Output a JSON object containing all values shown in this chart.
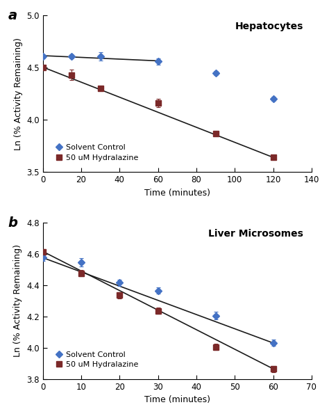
{
  "panel_a": {
    "title": "Hepatocytes",
    "label": "a",
    "xlim": [
      0,
      140
    ],
    "ylim": [
      3.5,
      5.0
    ],
    "xticks": [
      0,
      20,
      40,
      60,
      80,
      100,
      120,
      140
    ],
    "yticks": [
      3.5,
      4.0,
      4.5,
      5.0
    ],
    "xlabel": "Time (minutes)",
    "ylabel": "Ln (% Activity Remaining)",
    "solvent_x": [
      0,
      15,
      30,
      60,
      90,
      120
    ],
    "solvent_y": [
      4.61,
      4.61,
      4.61,
      4.56,
      4.45,
      4.2
    ],
    "solvent_yerr": [
      0.02,
      0.02,
      0.04,
      0.03,
      0.02,
      0.02
    ],
    "hydral_x": [
      0,
      15,
      30,
      60,
      90,
      120
    ],
    "hydral_y": [
      4.5,
      4.43,
      4.3,
      4.16,
      3.87,
      3.64
    ],
    "hydral_yerr": [
      0.02,
      0.05,
      0.02,
      0.04,
      0.02,
      0.02
    ],
    "sol_line_x": [
      0,
      60
    ],
    "sol_line_y": [
      4.615,
      4.565
    ],
    "hyd_line_x": [
      0,
      120
    ],
    "hyd_line_y": [
      4.505,
      3.64
    ]
  },
  "panel_b": {
    "title": "Liver Microsomes",
    "label": "b",
    "xlim": [
      0,
      70
    ],
    "ylim": [
      3.8,
      4.8
    ],
    "xticks": [
      0,
      10,
      20,
      30,
      40,
      50,
      60,
      70
    ],
    "yticks": [
      3.8,
      4.0,
      4.2,
      4.4,
      4.6,
      4.8
    ],
    "xlabel": "Time (minutes)",
    "ylabel": "Ln (% Activity Remaining)",
    "solvent_x": [
      0,
      10,
      20,
      30,
      45,
      60
    ],
    "solvent_y": [
      4.575,
      4.545,
      4.415,
      4.365,
      4.205,
      4.03
    ],
    "solvent_yerr": [
      0.02,
      0.025,
      0.02,
      0.02,
      0.025,
      0.02
    ],
    "hydral_x": [
      0,
      10,
      20,
      30,
      45,
      60
    ],
    "hydral_y": [
      4.61,
      4.475,
      4.335,
      4.235,
      4.005,
      3.865
    ],
    "hydral_yerr": [
      0.02,
      0.02,
      0.02,
      0.02,
      0.02,
      0.02
    ],
    "sol_line_x": [
      0,
      60
    ],
    "sol_line_y": [
      4.575,
      4.03
    ],
    "hyd_line_x": [
      0,
      60
    ],
    "hyd_line_y": [
      4.615,
      3.865
    ]
  },
  "solvent_color": "#4472C4",
  "hydral_color": "#7B2929",
  "line_color": "#1a1a1a",
  "bg_color": "#ffffff",
  "legend_solvent": "Solvent Control",
  "legend_hydral": "50 uM Hydralazine"
}
